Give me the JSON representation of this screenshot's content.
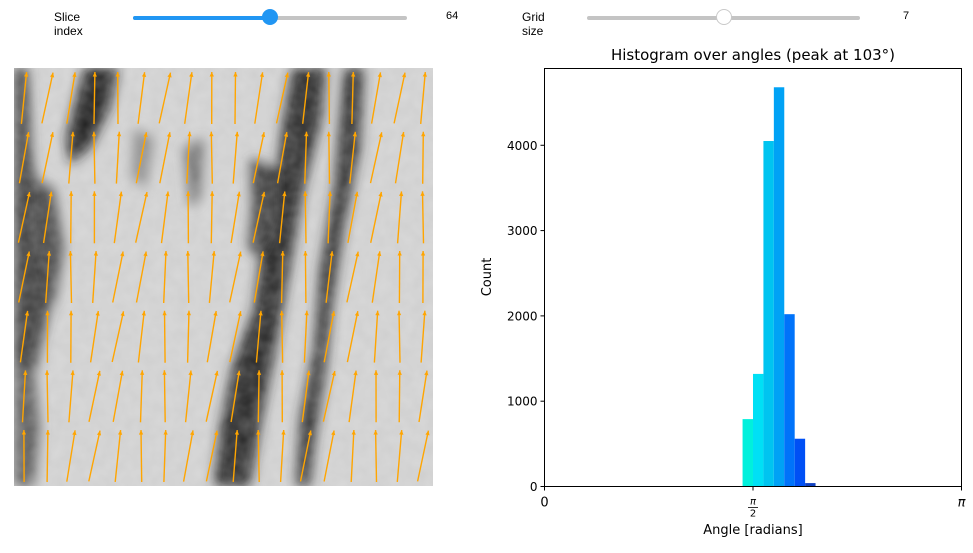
{
  "controls": {
    "slice": {
      "label": "Slice index",
      "value": "64",
      "fraction": 0.5,
      "accent": "#2196f3"
    },
    "grid": {
      "label": "Grid size",
      "value": "7",
      "fraction": 0.5,
      "accent": "#c4c4c4"
    }
  },
  "image": {
    "description": "grayscale slice with orientation vector field",
    "arrow_color": "#ffa500"
  },
  "chart_data": {
    "type": "bar",
    "title": "Histogram over angles (peak at 103°)",
    "xlabel": "Angle [radians]",
    "ylabel": "Count",
    "xlim": [
      0,
      3.14159
    ],
    "ylim": [
      0,
      4900
    ],
    "xticks": [
      {
        "value": 0,
        "label": "0"
      },
      {
        "value": 1.5708,
        "label": "π/2"
      },
      {
        "value": 3.14159,
        "label": "π"
      }
    ],
    "yticks": [
      0,
      1000,
      2000,
      3000,
      4000
    ],
    "bin_width": 0.0785,
    "bins": [
      {
        "x0": 1.4922,
        "value": 790,
        "color": "#00f0dc"
      },
      {
        "x0": 1.5708,
        "value": 1320,
        "color": "#00e0f5"
      },
      {
        "x0": 1.6493,
        "value": 4050,
        "color": "#00c4f0"
      },
      {
        "x0": 1.7279,
        "value": 4680,
        "color": "#00a2f5"
      },
      {
        "x0": 1.8064,
        "value": 2020,
        "color": "#0073fa"
      },
      {
        "x0": 1.885,
        "value": 560,
        "color": "#0050f5"
      },
      {
        "x0": 1.9635,
        "value": 40,
        "color": "#1040c0"
      }
    ]
  }
}
